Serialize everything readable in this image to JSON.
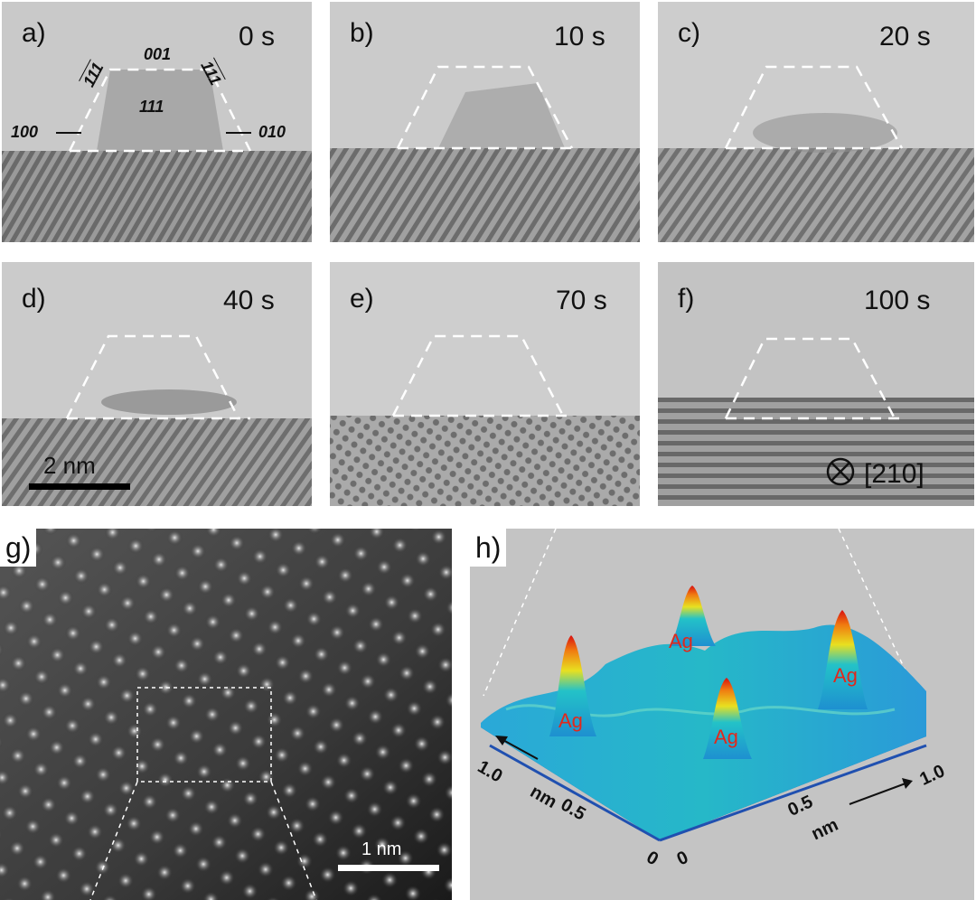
{
  "panels": [
    {
      "label": "a)",
      "time": "0 s"
    },
    {
      "label": "b)",
      "time": "10 s"
    },
    {
      "label": "c)",
      "time": "20 s"
    },
    {
      "label": "d)",
      "time": "40 s"
    },
    {
      "label": "e)",
      "time": "70 s"
    },
    {
      "label": "f)",
      "time": "100 s"
    }
  ],
  "facets": {
    "top": "001",
    "center": "111",
    "upper_left": "111",
    "upper_right": "111",
    "left": "100",
    "right": "010"
  },
  "scalebar_d": "2 nm",
  "zone_axis": "[210]",
  "panel_g": {
    "label": "g)",
    "scalebar": "1 nm"
  },
  "panel_h": {
    "label": "h)",
    "peak_label": "Ag",
    "axis_ticks_left": [
      "1.0",
      "0.5",
      "0"
    ],
    "axis_ticks_right": [
      "0",
      "0.5",
      "1.0"
    ],
    "axis_unit": "nm"
  }
}
